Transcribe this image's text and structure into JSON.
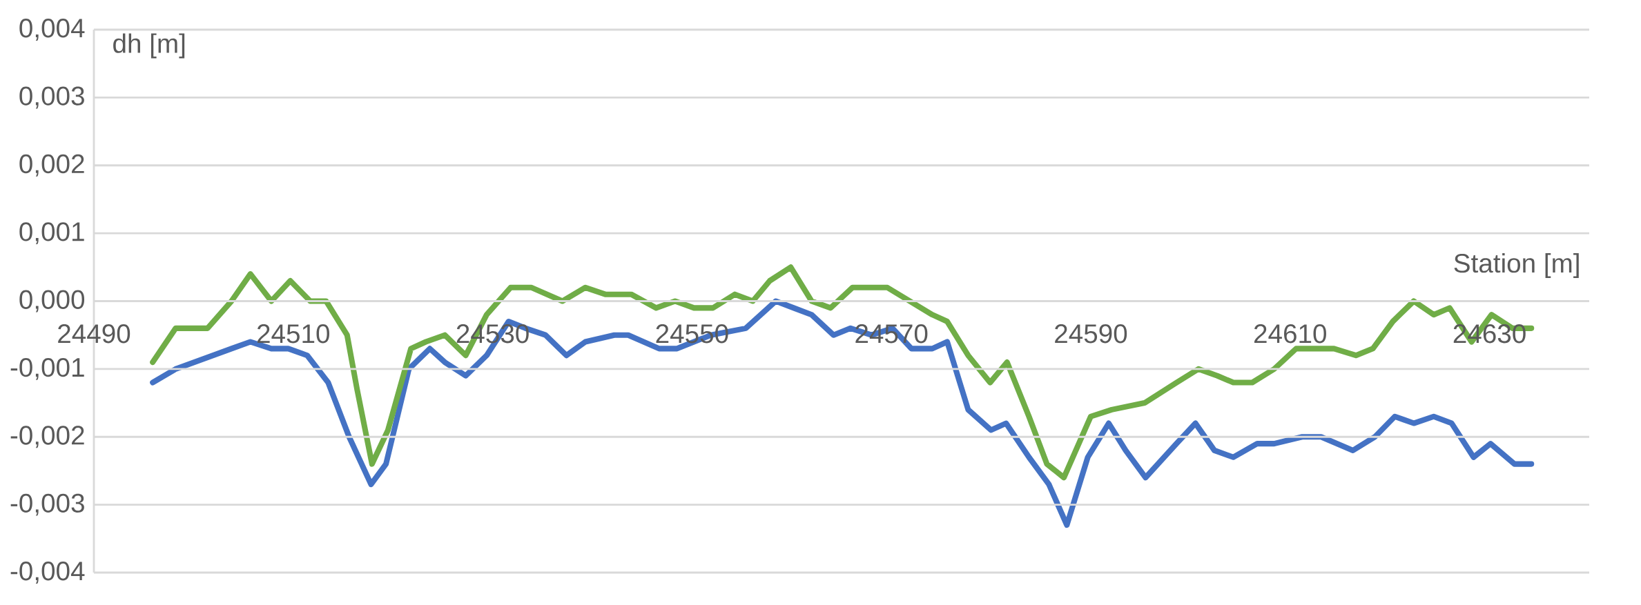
{
  "chart_data": {
    "type": "line",
    "xlabel": "Station [m]",
    "ylabel": "dh [m]",
    "xlim": [
      24490,
      24640
    ],
    "ylim": [
      -0.004,
      0.004
    ],
    "xticks": [
      24490,
      24510,
      24530,
      24550,
      24570,
      24590,
      24610,
      24630
    ],
    "yticks": [
      {
        "value": -0.004,
        "label": "-0,004"
      },
      {
        "value": -0.003,
        "label": "-0,003"
      },
      {
        "value": -0.002,
        "label": "-0,002"
      },
      {
        "value": -0.001,
        "label": "-0,001"
      },
      {
        "value": 0,
        "label": "0,000"
      },
      {
        "value": 0.001,
        "label": "0,001"
      },
      {
        "value": 0.002,
        "label": "0,002"
      },
      {
        "value": 0.003,
        "label": "0,003"
      },
      {
        "value": 0.004,
        "label": "0,004"
      }
    ],
    "grid": "y",
    "series": [
      {
        "color": "#4472c4",
        "x": [
          24495.9,
          24498.2,
          24503.8,
          24505.7,
          24507.8,
          24509.5,
          24511.4,
          24513.5,
          24515.6,
          24517.8,
          24519.3,
          24521.6,
          24523.7,
          24525.2,
          24527.3,
          24529.4,
          24531.6,
          24533.3,
          24535.3,
          24537.4,
          24539.3,
          24542.2,
          24543.6,
          24546.7,
          24548.5,
          24551.9,
          24555.4,
          24558.4,
          24560.2,
          24562.0,
          24564.2,
          24565.9,
          24568.0,
          24570.1,
          24572.0,
          24574.1,
          24575.6,
          24577.7,
          24580.0,
          24581.5,
          24583.8,
          24585.8,
          24587.6,
          24589.7,
          24591.8,
          24593.5,
          24595.5,
          24598.6,
          24600.5,
          24602.4,
          24604.3,
          24606.7,
          24608.4,
          24611.2,
          24613.1,
          24616.3,
          24618.5,
          24620.5,
          24622.4,
          24624.4,
          24626.2,
          24628.4,
          24630.1,
          24632.5,
          24634.2
        ],
        "values": [
          -0.0012,
          -0.001,
          -0.0007,
          -0.0006,
          -0.0007,
          -0.0007,
          -0.0008,
          -0.0012,
          -0.002,
          -0.0027,
          -0.0024,
          -0.001,
          -0.0007,
          -0.0009,
          -0.0011,
          -0.0008,
          -0.0003,
          -0.0004,
          -0.0005,
          -0.0008,
          -0.0006,
          -0.0005,
          -0.0005,
          -0.0007,
          -0.0007,
          -0.0005,
          -0.0004,
          0.0,
          -0.0001,
          -0.0002,
          -0.0005,
          -0.0004,
          -0.0005,
          -0.0004,
          -0.0007,
          -0.0007,
          -0.0006,
          -0.0016,
          -0.0019,
          -0.0018,
          -0.0023,
          -0.0027,
          -0.0033,
          -0.0023,
          -0.0018,
          -0.0022,
          -0.0026,
          -0.0021,
          -0.0018,
          -0.0022,
          -0.0023,
          -0.0021,
          -0.0021,
          -0.002,
          -0.002,
          -0.0022,
          -0.002,
          -0.0017,
          -0.0018,
          -0.0017,
          -0.0018,
          -0.0023,
          -0.0021,
          -0.0024,
          -0.0024
        ]
      },
      {
        "color": "#70ad47",
        "x": [
          24495.9,
          24498.2,
          24500.0,
          24501.4,
          24503.8,
          24505.7,
          24507.8,
          24509.7,
          24511.7,
          24513.3,
          24515.4,
          24516.4,
          24517.9,
          24519.5,
          24521.8,
          24523.3,
          24525.2,
          24527.3,
          24529.4,
          24531.8,
          24533.9,
          24537.0,
          24539.3,
          24541.3,
          24542.7,
          24543.9,
          24546.4,
          24548.3,
          24550.2,
          24552.1,
          24554.3,
          24556.1,
          24557.8,
          24559.9,
          24562.0,
          24563.9,
          24566.1,
          24568.0,
          24569.6,
          24574.1,
          24575.6,
          24577.7,
          24579.9,
          24581.6,
          24583.8,
          24585.6,
          24587.3,
          24590.0,
          24592.1,
          24595.4,
          24598.6,
          24600.8,
          24602.7,
          24604.3,
          24606.2,
          24608.4,
          24610.6,
          24612.5,
          24614.4,
          24616.6,
          24618.3,
          24620.3,
          24622.4,
          24624.4,
          24626.0,
          24628.2,
          24630.2,
          24632.3,
          24634.2
        ],
        "values": [
          -0.0009,
          -0.0004,
          -0.0004,
          -0.0004,
          0.0,
          0.0004,
          0.0,
          0.0003,
          0.0,
          0.0,
          -0.0005,
          -0.0013,
          -0.0024,
          -0.0019,
          -0.0007,
          -0.0006,
          -0.0005,
          -0.0008,
          -0.0002,
          0.0002,
          0.0002,
          0.0,
          0.0002,
          0.0001,
          0.0001,
          0.0001,
          -0.0001,
          0.0,
          -0.0001,
          -0.0001,
          0.0001,
          0.0,
          0.0003,
          0.0005,
          0.0,
          -0.0001,
          0.0002,
          0.0002,
          0.0002,
          -0.0002,
          -0.0003,
          -0.0008,
          -0.0012,
          -0.0009,
          -0.0017,
          -0.0024,
          -0.0026,
          -0.0017,
          -0.0016,
          -0.0015,
          -0.0012,
          -0.001,
          -0.0011,
          -0.0012,
          -0.0012,
          -0.001,
          -0.0007,
          -0.0007,
          -0.0007,
          -0.0008,
          -0.0007,
          -0.0003,
          0.0,
          -0.0002,
          -0.0001,
          -0.0006,
          -0.0002,
          -0.0004,
          -0.0004
        ]
      }
    ]
  }
}
